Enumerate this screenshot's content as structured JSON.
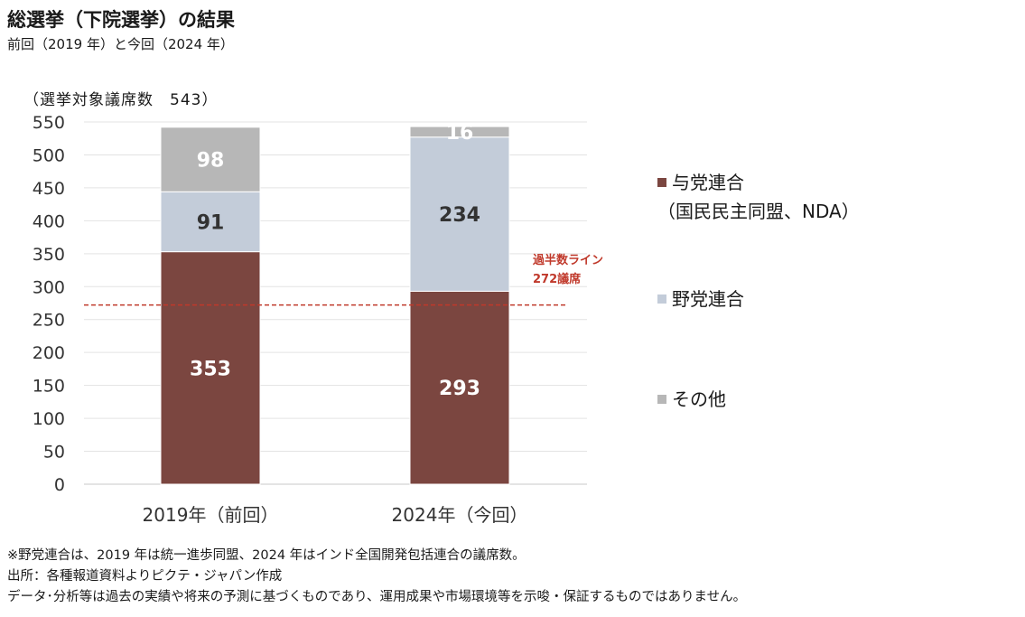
{
  "header": {
    "title": "総選挙（下院選挙）の結果",
    "subtitle": "前回（2019 年）と今回（2024 年）"
  },
  "seats_note": "（選挙対象議席数　543）",
  "colors": {
    "ruling": "#7b4640",
    "opposition": "#c3ccd9",
    "other": "#b7b7b7",
    "majority_line": "#c0392b",
    "grid": "#e3e3e3"
  },
  "legend": [
    {
      "label": "与党連合",
      "sublabel": "（国民民主同盟、NDA）",
      "color": "#7b4640"
    },
    {
      "label": "野党連合",
      "sublabel": "",
      "color": "#c3ccd9"
    },
    {
      "label": "その他",
      "sublabel": "",
      "color": "#b7b7b7"
    }
  ],
  "chart_data": {
    "type": "bar",
    "stacked": true,
    "categories": [
      "2019年（前回）",
      "2024年（今回）"
    ],
    "series": [
      {
        "name": "与党連合",
        "values": [
          353,
          293
        ],
        "color": "#7b4640",
        "label_color": "#ffffff"
      },
      {
        "name": "野党連合",
        "values": [
          91,
          234
        ],
        "color": "#c3ccd9",
        "label_color": "#333333"
      },
      {
        "name": "その他",
        "values": [
          98,
          16
        ],
        "color": "#b7b7b7",
        "label_color": "#ffffff"
      }
    ],
    "ylim": [
      0,
      550
    ],
    "yticks": [
      0,
      50,
      100,
      150,
      200,
      250,
      300,
      350,
      400,
      450,
      500,
      550
    ],
    "grid": true,
    "reference_line": {
      "value": 272,
      "label_line1": "過半数ライン",
      "label_line2": "272議席"
    }
  },
  "footnotes": [
    "※野党連合は、2019 年は統一進歩同盟、2024 年はインド全国開発包括連合の議席数。",
    "出所：各種報道資料よりピクテ・ジャパン作成",
    "データ･分析等は過去の実績や将来の予測に基づくものであり、運用成果や市場環境等を示唆・保証するものではありません。"
  ]
}
